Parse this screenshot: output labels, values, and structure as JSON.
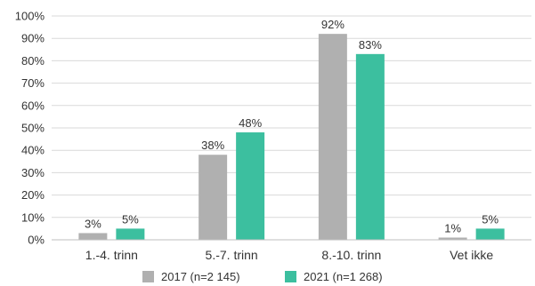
{
  "chart_data": {
    "type": "bar",
    "title": "",
    "xlabel": "",
    "ylabel": "",
    "categories": [
      "1.-4. trinn",
      "5.-7. trinn",
      "8.-10. trinn",
      "Vet ikke"
    ],
    "series": [
      {
        "name": "2017 (n=2 145)",
        "color": "#b0b0b0",
        "values": [
          3,
          38,
          92,
          1
        ],
        "labels": [
          "3%",
          "38%",
          "92%",
          "1%"
        ]
      },
      {
        "name": "2021 (n=1 268)",
        "color": "#3cbf9f",
        "values": [
          5,
          48,
          83,
          5
        ],
        "labels": [
          "5%",
          "48%",
          "83%",
          "5%"
        ]
      }
    ],
    "ylim": [
      0,
      100
    ],
    "yticks": [
      {
        "value": 0,
        "label": "0%"
      },
      {
        "value": 10,
        "label": "10%"
      },
      {
        "value": 20,
        "label": "20%"
      },
      {
        "value": 30,
        "label": "30%"
      },
      {
        "value": 40,
        "label": "40%"
      },
      {
        "value": 50,
        "label": "50%"
      },
      {
        "value": 60,
        "label": "60%"
      },
      {
        "value": 70,
        "label": "70%"
      },
      {
        "value": 80,
        "label": "80%"
      },
      {
        "value": 90,
        "label": "90%"
      },
      {
        "value": 100,
        "label": "100%"
      }
    ],
    "grid": true,
    "legend_position": "bottom"
  }
}
